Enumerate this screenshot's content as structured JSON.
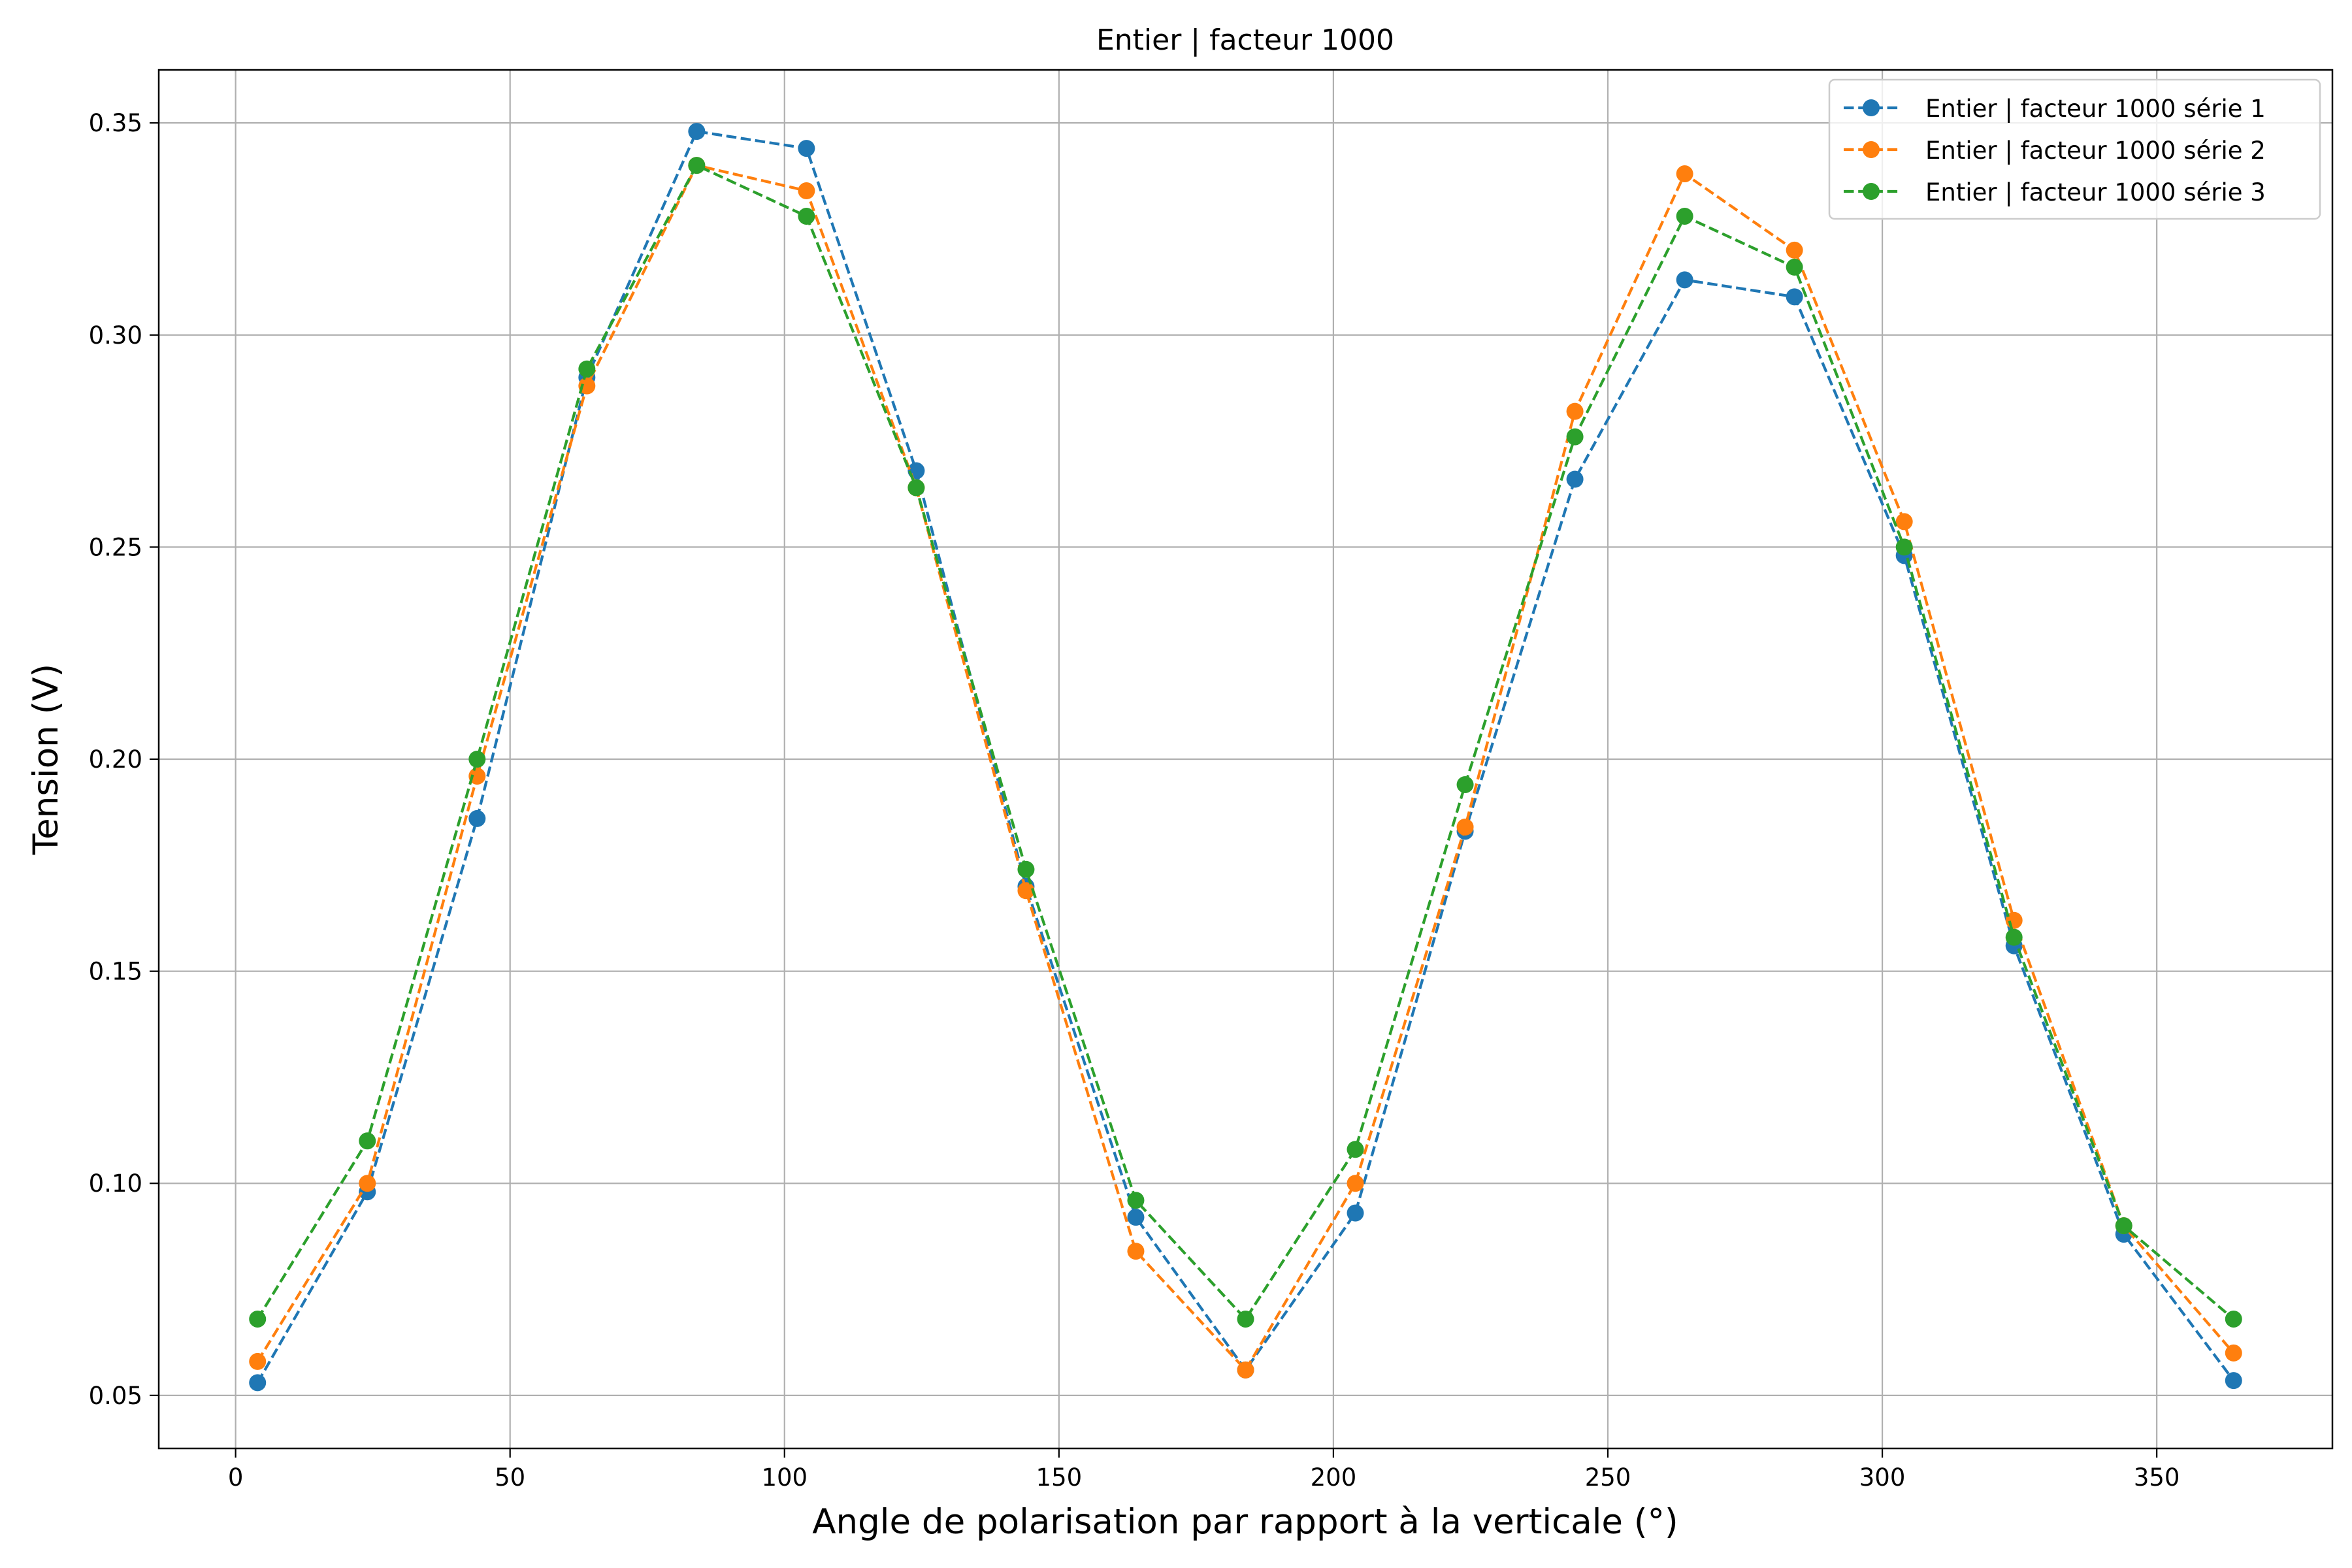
{
  "chart_data": {
    "type": "line",
    "title": "Entier | facteur 1000",
    "xlabel": "Angle de polarisation par rapport à la verticale (°)",
    "ylabel": "Tension (V)",
    "xlim": [
      -14,
      382
    ],
    "ylim": [
      0.0375,
      0.3625
    ],
    "xticks": [
      0,
      50,
      100,
      150,
      200,
      250,
      300,
      350
    ],
    "xtick_labels": [
      "0",
      "50",
      "100",
      "150",
      "200",
      "250",
      "300",
      "350"
    ],
    "yticks": [
      0.05,
      0.1,
      0.15,
      0.2,
      0.25,
      0.3,
      0.35
    ],
    "ytick_labels": [
      "0.05",
      "0.10",
      "0.15",
      "0.20",
      "0.25",
      "0.30",
      "0.35"
    ],
    "grid": true,
    "legend_position": "top-right",
    "x": [
      4,
      24,
      44,
      64,
      84,
      104,
      124,
      144,
      164,
      184,
      204,
      224,
      244,
      264,
      284,
      304,
      324,
      344,
      364
    ],
    "series": [
      {
        "name": "Entier | facteur 1000 série 1",
        "color": "#1f77b4",
        "values": [
          0.053,
          0.098,
          0.186,
          0.29,
          0.348,
          0.344,
          0.268,
          0.17,
          0.092,
          0.056,
          0.093,
          0.183,
          0.266,
          0.313,
          0.309,
          0.248,
          0.156,
          0.088,
          0.0535
        ]
      },
      {
        "name": "Entier | facteur 1000 série 2",
        "color": "#ff7f0e",
        "values": [
          0.058,
          0.1,
          0.196,
          0.288,
          0.34,
          0.334,
          0.264,
          0.169,
          0.084,
          0.056,
          0.1,
          0.184,
          0.282,
          0.338,
          0.32,
          0.256,
          0.162,
          0.09,
          0.06
        ]
      },
      {
        "name": "Entier | facteur 1000 série 3",
        "color": "#2ca02c",
        "values": [
          0.068,
          0.11,
          0.2,
          0.292,
          0.34,
          0.328,
          0.264,
          0.174,
          0.096,
          0.068,
          0.108,
          0.194,
          0.276,
          0.328,
          0.316,
          0.25,
          0.158,
          0.09,
          0.068
        ]
      }
    ]
  }
}
